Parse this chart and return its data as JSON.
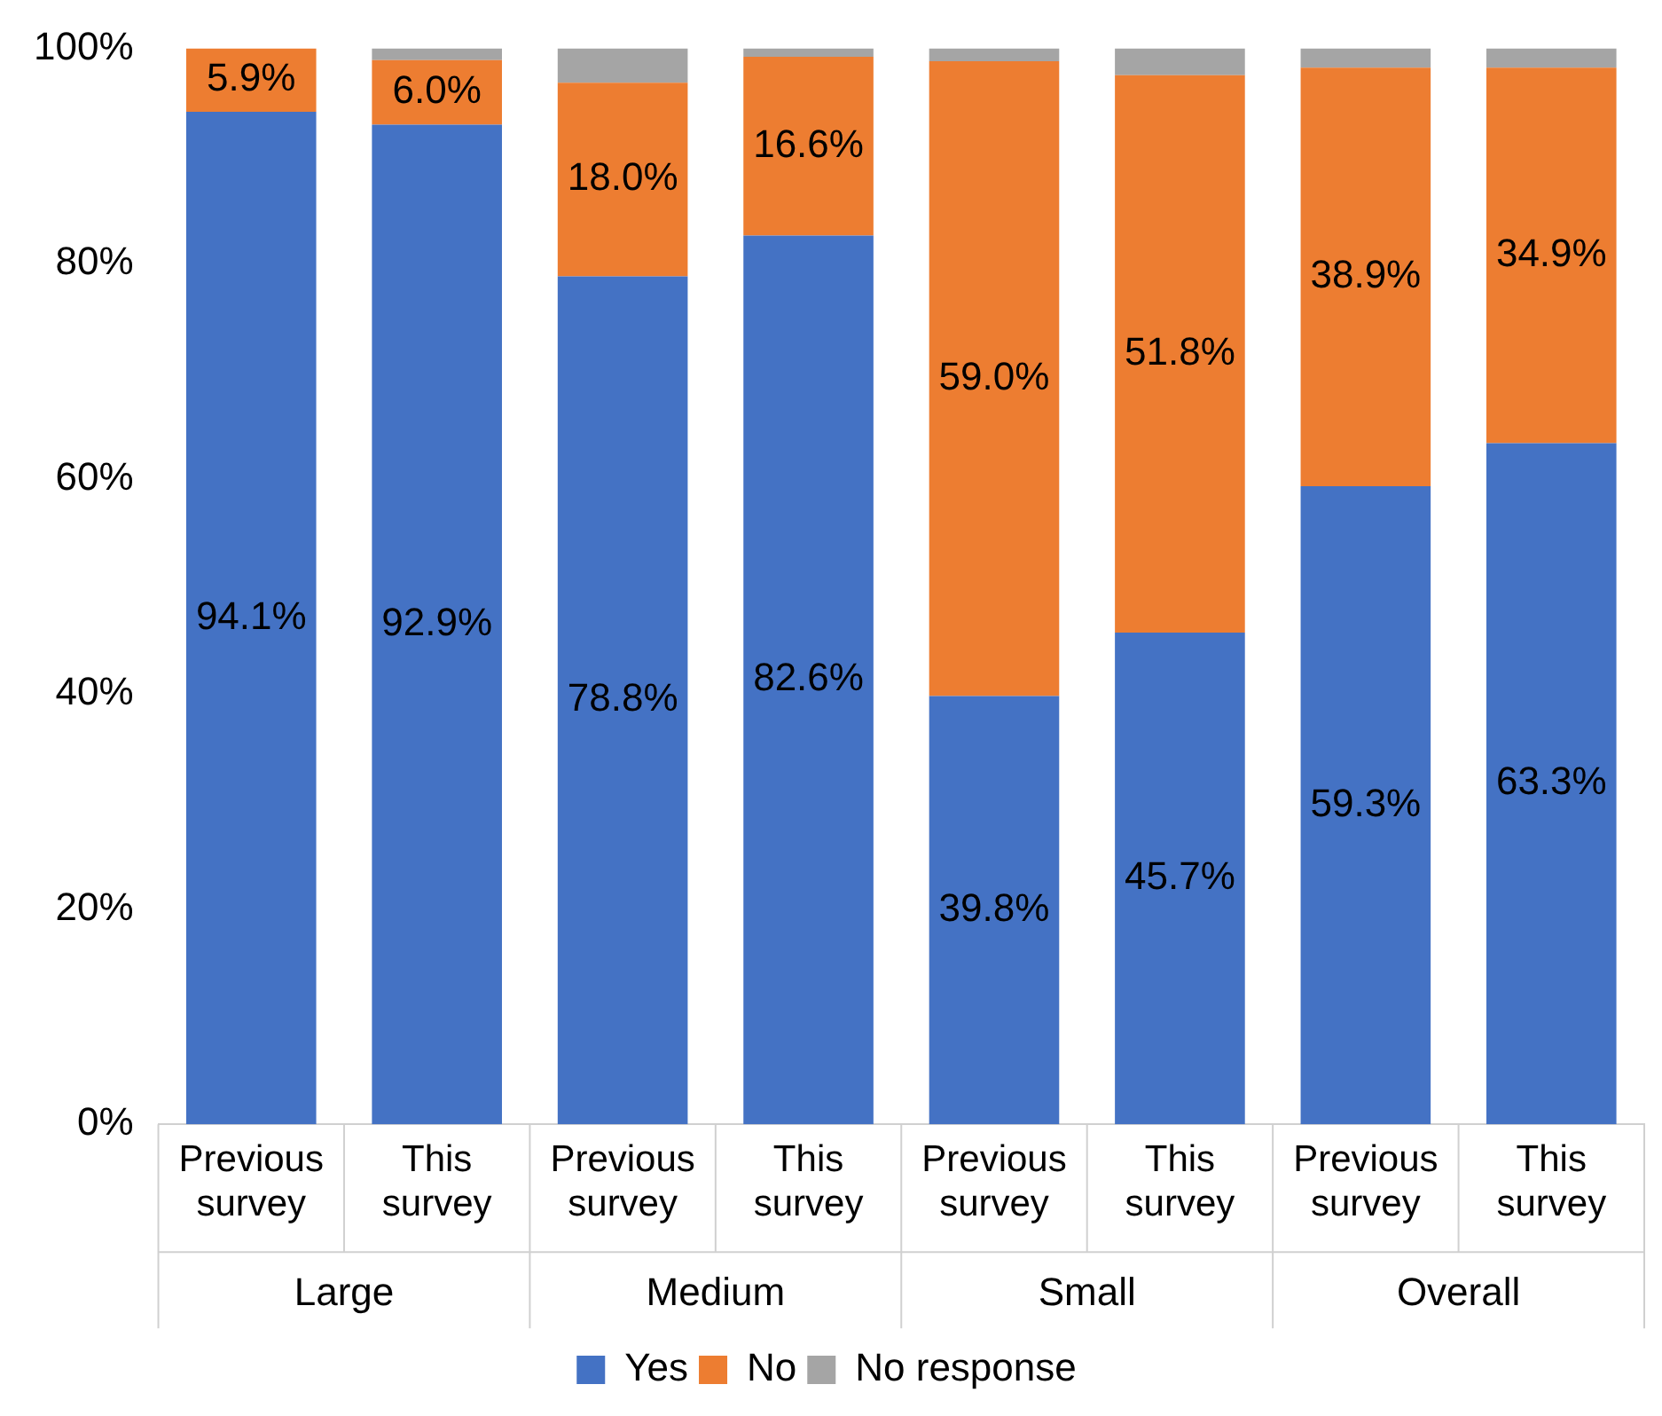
{
  "chart_data": {
    "type": "bar",
    "stacked": true,
    "categories": [
      "Previous survey",
      "This survey",
      "Previous survey",
      "This survey",
      "Previous survey",
      "This survey",
      "Previous survey",
      "This survey"
    ],
    "series": [
      {
        "name": "Yes",
        "color": "#4472c4",
        "values": [
          94.1,
          92.9,
          78.8,
          82.6,
          39.8,
          45.7,
          59.3,
          63.3
        ],
        "value_labels": [
          "94.1%",
          "92.9%",
          "78.8%",
          "82.6%",
          "39.8%",
          "45.7%",
          "59.3%",
          "63.3%"
        ]
      },
      {
        "name": "No",
        "color": "#ed7d31",
        "values": [
          5.9,
          6.0,
          18.0,
          16.6,
          59.0,
          51.8,
          38.9,
          34.9
        ],
        "value_labels": [
          "5.9%",
          "6.0%",
          "18.0%",
          "16.6%",
          "59.0%",
          "51.8%",
          "38.9%",
          "34.9%"
        ]
      },
      {
        "name": "No response",
        "color": "#a5a5a5",
        "values": [
          null,
          1.1,
          3.2,
          0.8,
          1.2,
          2.5,
          1.8,
          1.8
        ]
      }
    ],
    "ylim": [
      0,
      100
    ],
    "yticks": [
      {
        "value": 0,
        "label": "0%"
      },
      {
        "value": 20,
        "label": "20%"
      },
      {
        "value": 40,
        "label": "40%"
      },
      {
        "value": 60,
        "label": "60%"
      },
      {
        "value": 80,
        "label": "80%"
      },
      {
        "value": 100,
        "label": "100%"
      }
    ],
    "annotations": [
      "Large",
      "Medium",
      "Small",
      "Overall"
    ],
    "legend": "bottom"
  }
}
